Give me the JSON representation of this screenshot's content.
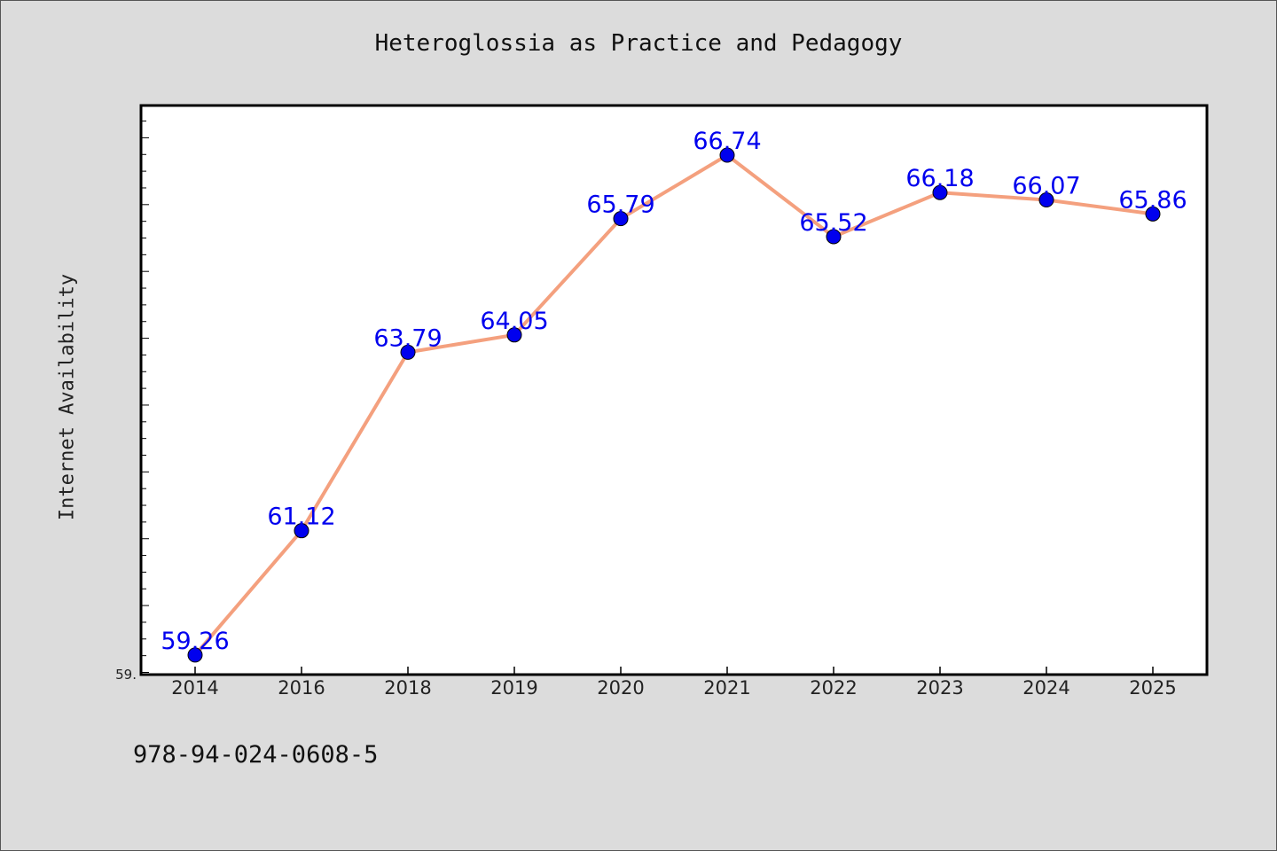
{
  "chart_data": {
    "type": "line",
    "title": "Heteroglossia as Practice and Pedagogy",
    "xlabel": "",
    "ylabel": "Internet Availability",
    "categories": [
      "2014",
      "2016",
      "2018",
      "2019",
      "2020",
      "2021",
      "2022",
      "2023",
      "2024",
      "2025"
    ],
    "values": [
      59.26,
      61.12,
      63.79,
      64.05,
      65.79,
      66.74,
      65.52,
      66.18,
      66.07,
      65.86
    ],
    "data_labels": [
      "59.26",
      "61.12",
      "63.79",
      "64.05",
      "65.79",
      "66.74",
      "65.52",
      "66.18",
      "66.07",
      "65.86"
    ],
    "y_tick_label": "59.",
    "ylim": [
      58.98,
      67.47
    ],
    "grid": false,
    "legend": "none",
    "line_color": "#f4a07e",
    "marker_color": "#0000ee",
    "label_color": "#0000ee"
  },
  "footer": {
    "isbn": "978-94-024-0608-5"
  }
}
